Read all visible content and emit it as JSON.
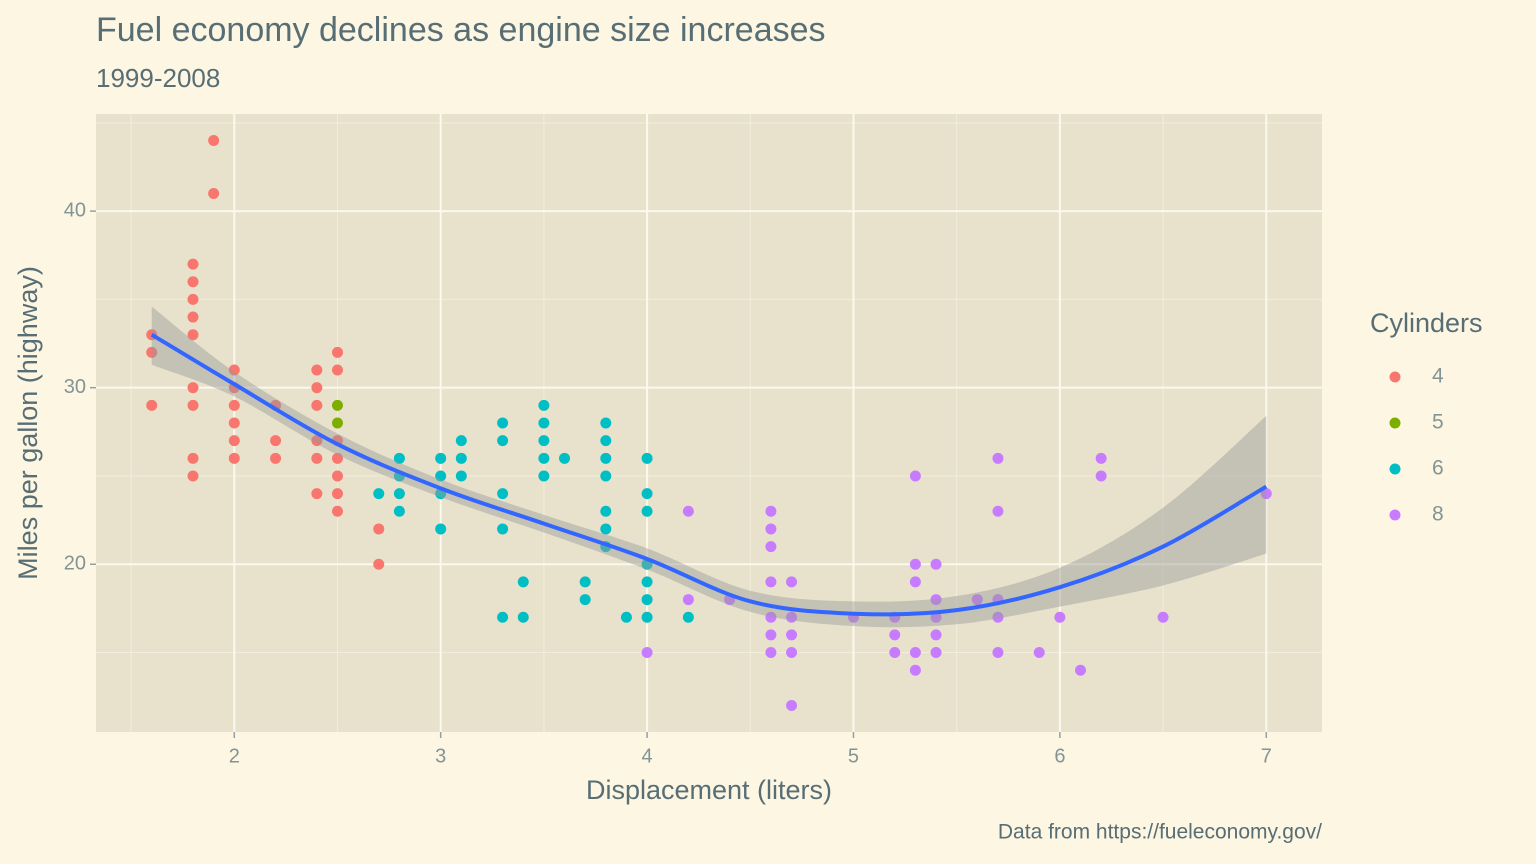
{
  "chart_data": {
    "type": "scatter",
    "title": "Fuel economy declines as engine size increases",
    "subtitle": "1999-2008",
    "x_label": "Displacement (liters)",
    "y_label": "Miles per gallon (highway)",
    "caption": "Data from https://fueleconomy.gov/",
    "legend_title": "Cylinders",
    "xlim": [
      1.33,
      7.27
    ],
    "ylim": [
      10.5,
      45.5
    ],
    "xticks": [
      2,
      3,
      4,
      5,
      6,
      7
    ],
    "yticks": [
      20,
      30,
      40
    ],
    "xminor": [
      1.5,
      2.5,
      3.5,
      4.5,
      5.5,
      6.5
    ],
    "yminor": [
      15,
      25,
      35,
      45
    ],
    "grid": true,
    "series": [
      {
        "name": "4",
        "color": "#F8766D",
        "x": [
          1.6,
          1.6,
          1.6,
          1.8,
          1.8,
          1.8,
          1.8,
          1.8,
          1.8,
          1.8,
          1.8,
          1.8,
          1.9,
          1.9,
          2.0,
          2.0,
          2.0,
          2.0,
          2.0,
          2.0,
          2.2,
          2.2,
          2.2,
          2.4,
          2.4,
          2.4,
          2.4,
          2.4,
          2.4,
          2.5,
          2.5,
          2.5,
          2.5,
          2.5,
          2.5,
          2.5,
          2.7,
          2.7
        ],
        "values": [
          33,
          32,
          29,
          37,
          36,
          35,
          34,
          33,
          30,
          29,
          26,
          25,
          44,
          41,
          31,
          30,
          29,
          28,
          27,
          26,
          29,
          27,
          26,
          31,
          30,
          29,
          27,
          26,
          24,
          32,
          31,
          27,
          26,
          25,
          24,
          23,
          22,
          20
        ]
      },
      {
        "name": "5",
        "color": "#7CAE00",
        "x": [
          2.5,
          2.5
        ],
        "values": [
          29,
          28
        ]
      },
      {
        "name": "6",
        "color": "#00BFC4",
        "x": [
          2.7,
          2.8,
          2.8,
          2.8,
          2.8,
          3.0,
          3.0,
          3.0,
          3.0,
          3.1,
          3.1,
          3.1,
          3.3,
          3.3,
          3.3,
          3.3,
          3.3,
          3.4,
          3.4,
          3.5,
          3.5,
          3.5,
          3.5,
          3.5,
          3.6,
          3.7,
          3.7,
          3.8,
          3.8,
          3.8,
          3.8,
          3.8,
          3.8,
          3.8,
          3.9,
          4.0,
          4.0,
          4.0,
          4.0,
          4.0,
          4.0,
          4.0,
          4.2
        ],
        "values": [
          24,
          26,
          25,
          24,
          23,
          26,
          25,
          24,
          22,
          27,
          26,
          25,
          28,
          27,
          24,
          22,
          17,
          19,
          17,
          29,
          28,
          27,
          26,
          25,
          26,
          19,
          18,
          28,
          27,
          26,
          25,
          23,
          22,
          21,
          17,
          26,
          24,
          23,
          20,
          19,
          18,
          17,
          17
        ]
      },
      {
        "name": "8",
        "color": "#C77CFF",
        "x": [
          4.0,
          4.2,
          4.2,
          4.4,
          4.6,
          4.6,
          4.6,
          4.6,
          4.6,
          4.6,
          4.6,
          4.7,
          4.7,
          4.7,
          4.7,
          4.7,
          5.0,
          5.2,
          5.2,
          5.2,
          5.3,
          5.3,
          5.3,
          5.3,
          5.3,
          5.4,
          5.4,
          5.4,
          5.4,
          5.4,
          5.6,
          5.7,
          5.7,
          5.7,
          5.7,
          5.7,
          5.9,
          6.0,
          6.1,
          6.2,
          6.2,
          6.5,
          7.0
        ],
        "values": [
          15,
          23,
          18,
          18,
          23,
          22,
          21,
          19,
          17,
          16,
          15,
          19,
          17,
          16,
          15,
          12,
          17,
          17,
          16,
          15,
          25,
          20,
          19,
          15,
          14,
          20,
          18,
          17,
          16,
          15,
          18,
          26,
          23,
          18,
          17,
          15,
          15,
          17,
          14,
          26,
          25,
          17,
          24
        ]
      }
    ],
    "smooth": {
      "color": "#3366FF",
      "x": [
        1.6,
        2,
        2.5,
        3,
        3.5,
        4,
        4.5,
        5,
        5.5,
        6,
        6.5,
        7
      ],
      "values": [
        33,
        30.2,
        26.8,
        24.3,
        22.3,
        20.3,
        17.9,
        17.2,
        17.4,
        18.7,
        21,
        24.4
      ],
      "lower": [
        31.3,
        29.5,
        26.2,
        23.8,
        21.8,
        19.7,
        17.3,
        16.5,
        16.6,
        17.6,
        18.8,
        20.6
      ],
      "upper": [
        34.6,
        30.9,
        27.4,
        24.8,
        22.8,
        20.9,
        18.5,
        17.9,
        18.2,
        19.8,
        23.2,
        28.4
      ]
    }
  }
}
